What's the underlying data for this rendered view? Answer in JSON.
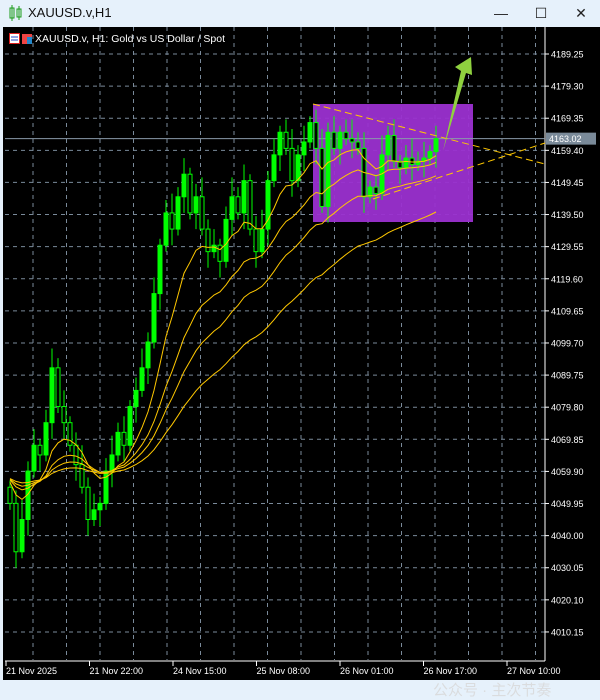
{
  "window": {
    "title": "XAUUSD.v,H1",
    "minimize": "—",
    "maximize": "☐",
    "close": "✕"
  },
  "chart": {
    "header": "XAUUSD.v, H1:  Gold vs US Dollar / Spot",
    "current_price": "4163.02",
    "watermark": "公众号 · 主次节奏"
  },
  "chart_data": {
    "type": "candlestick",
    "symbol": "XAUUSD.v",
    "timeframe": "H1",
    "y_ticks": [
      "4189.25",
      "4179.30",
      "4169.35",
      "4159.40",
      "4149.45",
      "4139.50",
      "4129.55",
      "4119.60",
      "4109.65",
      "4099.70",
      "4089.75",
      "4079.80",
      "4069.85",
      "4059.90",
      "4049.95",
      "4040.00",
      "4030.05",
      "4020.10",
      "4010.15"
    ],
    "x_ticks": [
      "21 Nov 2025",
      "21 Nov 22:00",
      "24 Nov 15:00",
      "25 Nov 08:00",
      "26 Nov 01:00",
      "26 Nov 17:00",
      "27 Nov 10:00"
    ],
    "ylim": [
      4004,
      4200
    ],
    "closes": [
      4050,
      4035,
      4045,
      4060,
      4068,
      4065,
      4075,
      4092,
      4080,
      4075,
      4068,
      4062,
      4055,
      4045,
      4048,
      4050,
      4060,
      4065,
      4072,
      4068,
      4080,
      4085,
      4092,
      4100,
      4115,
      4130,
      4140,
      4135,
      4145,
      4152,
      4140,
      4145,
      4135,
      4128,
      4130,
      4125,
      4138,
      4145,
      4140,
      4150,
      4135,
      4128,
      4135,
      4150,
      4158,
      4165,
      4160,
      4150,
      4158,
      4162,
      4168,
      4160,
      4142,
      4165,
      4160,
      4165,
      4163,
      4162,
      4160,
      4145,
      4148,
      4146,
      4158,
      4164,
      4156,
      4154,
      4157,
      4155,
      4156,
      4157,
      4159,
      4163
    ],
    "moving_averages": [
      10,
      20,
      30,
      50
    ],
    "colors": {
      "bull": "#00ff00",
      "bear": "#000000",
      "ma": "#ffc800",
      "zone": "#9b30d0",
      "arrow": "#8fd13f",
      "grid": "#7a8a9a"
    },
    "grid": true
  }
}
